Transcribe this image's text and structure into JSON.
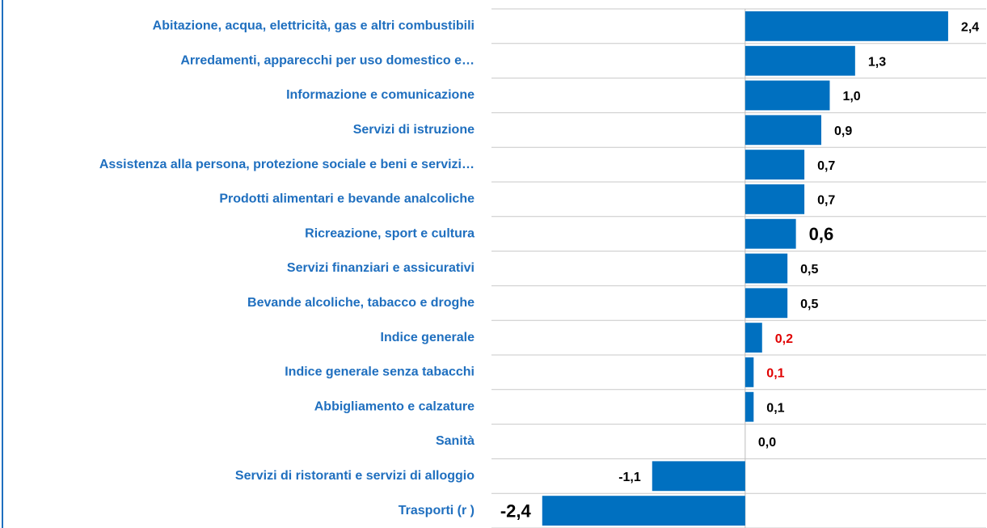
{
  "chart_data": {
    "type": "bar",
    "orientation": "horizontal",
    "categories": [
      "Abitazione, acqua, elettricità, gas e altri combustibili",
      "Arredamenti, apparecchi per uso domestico e…",
      "Informazione e comunicazione",
      "Servizi di istruzione",
      "Assistenza alla persona, protezione sociale e beni e servizi…",
      "Prodotti alimentari e bevande analcoliche",
      "Ricreazione, sport e cultura",
      "Servizi finanziari e assicurativi",
      "Bevande alcoliche, tabacco e droghe",
      "Indice generale",
      "Indice generale senza tabacchi",
      "Abbigliamento e calzature",
      "Sanità",
      "Servizi di ristoranti e servizi di alloggio",
      "Trasporti (r )"
    ],
    "values": [
      2.4,
      1.3,
      1.0,
      0.9,
      0.7,
      0.7,
      0.6,
      0.5,
      0.5,
      0.2,
      0.1,
      0.1,
      0.0,
      -1.1,
      -2.4
    ],
    "value_labels": [
      "2,4",
      "1,3",
      "1,0",
      "0,9",
      "0,7",
      "0,7",
      "0,6",
      "0,5",
      "0,5",
      "0,2",
      "0,1",
      "0,1",
      "0,0",
      "-1,1",
      "-2,4"
    ],
    "value_label_colors": [
      "#000000",
      "#000000",
      "#000000",
      "#000000",
      "#000000",
      "#000000",
      "#000000",
      "#000000",
      "#000000",
      "#e00000",
      "#e00000",
      "#000000",
      "#000000",
      "#000000",
      "#000000"
    ],
    "color": "#0070c0",
    "category_color": "#1f6fbf",
    "xlim": [
      -3,
      2.85
    ],
    "grid": true
  }
}
